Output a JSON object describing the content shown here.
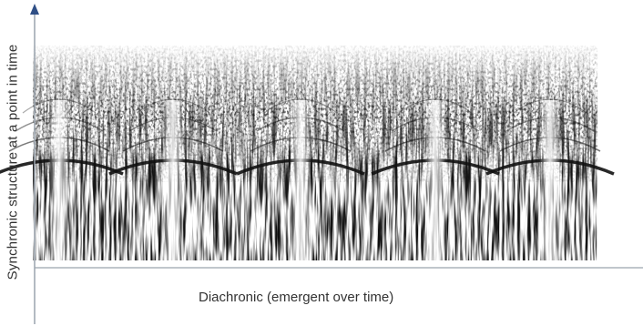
{
  "diagram": {
    "y_axis_label": "Synchronic structure at a point in time",
    "x_axis_label": "Diachronic (emergent over time)"
  },
  "colors": {
    "background": "#ffffff",
    "axis": "#9aa3ad",
    "axis_arrow": "#2f4f86",
    "ink": "#111111"
  },
  "spectrogram": {
    "style": "grayscale texture",
    "peak_bands": 5
  }
}
